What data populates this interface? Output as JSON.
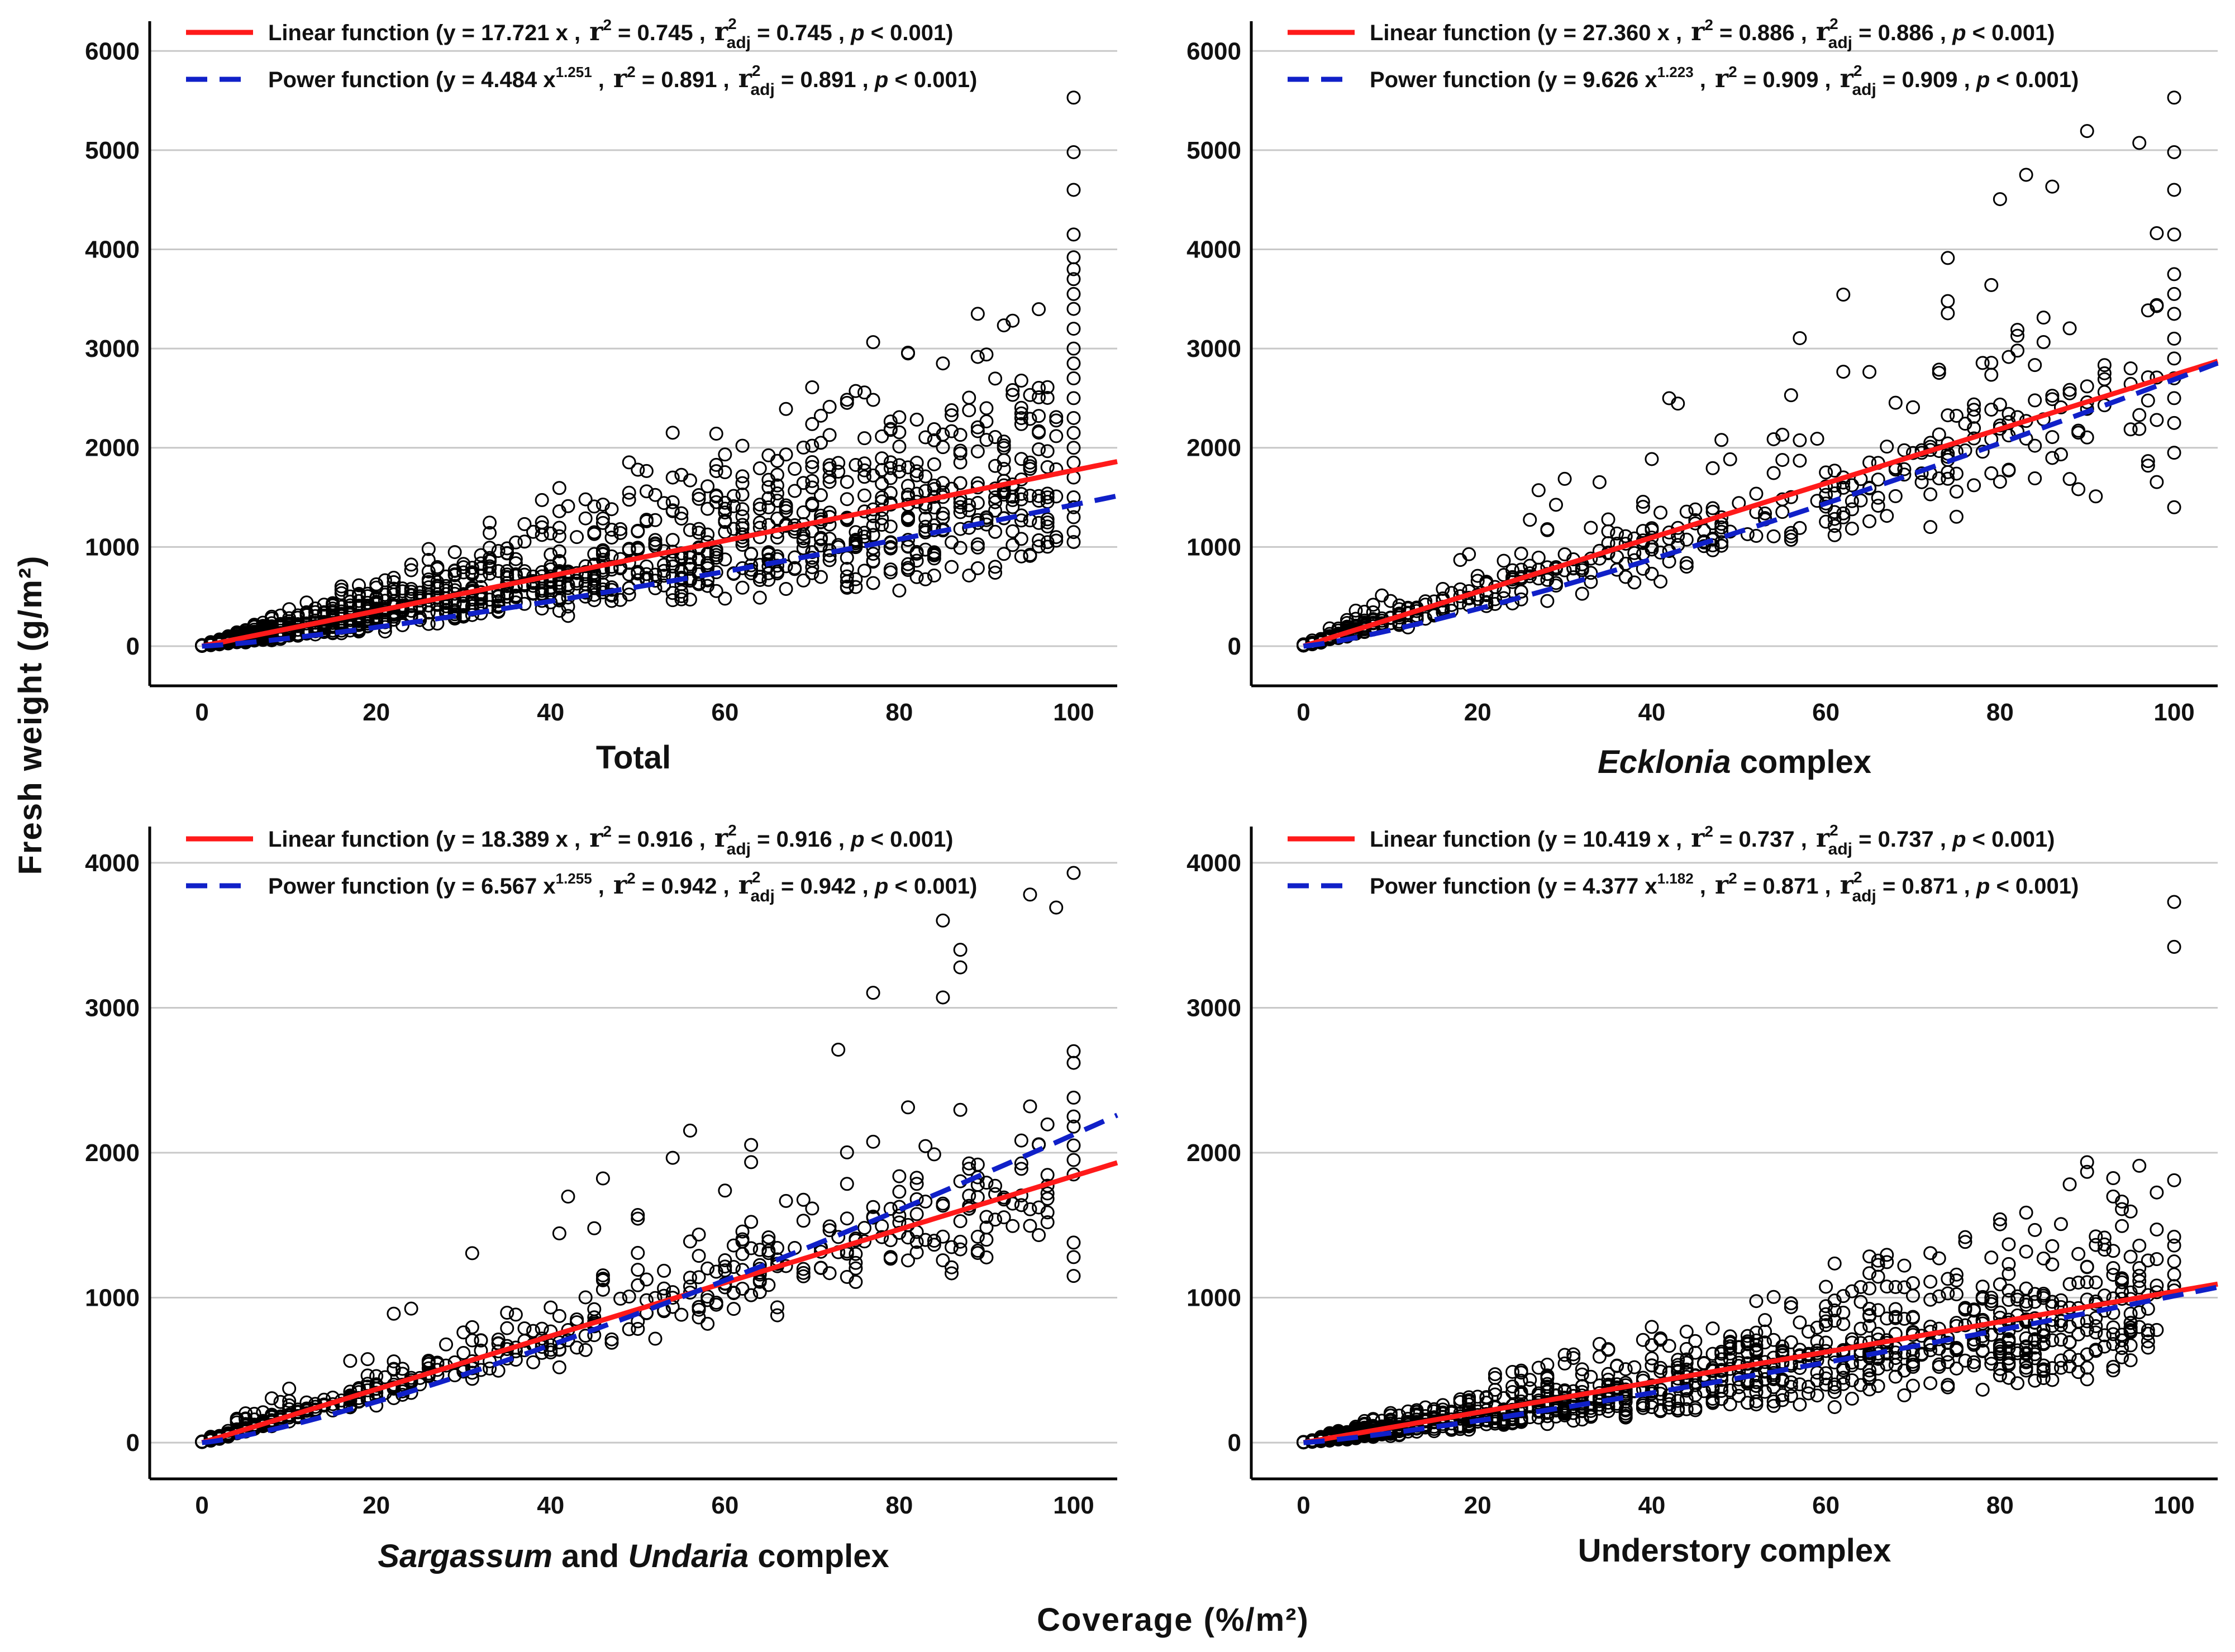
{
  "figure": {
    "y_axis_title": "Fresh weight (g/m²)",
    "x_axis_title": "Coverage  (%/m²)"
  },
  "colors": {
    "linear": "#ff1a1a",
    "power": "#1020c8",
    "grid": "#c8c8c8",
    "axis": "#000000",
    "marker": "#000000"
  },
  "chart_data": [
    {
      "type": "scatter",
      "title": "Total",
      "title_parts": [
        {
          "text": "Total",
          "italic": false
        }
      ],
      "xlim": [
        -6,
        105
      ],
      "ylim": [
        -400,
        6300
      ],
      "xticks": [
        0,
        20,
        40,
        60,
        80,
        100
      ],
      "yticks": [
        0,
        1000,
        2000,
        3000,
        4000,
        5000,
        6000
      ],
      "grid": true,
      "fits": [
        {
          "name": "Linear function",
          "model": "linear",
          "a": 17.721,
          "b": 1,
          "x_end": 105,
          "legend": {
            "lead": "Linear function (y = 17.721 x ,",
            "exp": "",
            "r2_label": "r",
            "r2_value": "= 0.745 ,",
            "radj_label": "r",
            "radj_sub": "adj",
            "radj_value": "= 0.745 ,",
            "p_label": "p",
            "p_value": "< 0.001)"
          }
        },
        {
          "name": "Power function",
          "model": "power",
          "a": 4.484,
          "b": 1.251,
          "x_end": 106,
          "legend": {
            "lead": "Power function (y = 4.484 x",
            "exp": "1.251",
            "r2_label": "r",
            "r2_value": "= 0.891 ,",
            "radj_label": "r",
            "radj_sub": "adj",
            "radj_value": "= 0.891 ,",
            "p_label": "p",
            "p_value": "< 0.001)"
          }
        }
      ],
      "points": {
        "seed": 11,
        "count": 1350,
        "slope": 16.5,
        "exponent": 1.0,
        "spread": 0.85,
        "full_cover_values": [
          5530,
          4980,
          4600,
          4150,
          3920,
          3800,
          3700,
          3550,
          3400,
          3200,
          3000,
          2850,
          2700,
          2500,
          2300,
          2150,
          2000,
          1850,
          1700,
          1500,
          1400,
          1300,
          1150,
          1050
        ]
      }
    },
    {
      "type": "scatter",
      "title": "Ecklonia complex",
      "title_parts": [
        {
          "text": "Ecklonia",
          "italic": true
        },
        {
          "text": " complex",
          "italic": false
        }
      ],
      "xlim": [
        -6,
        105
      ],
      "ylim": [
        -400,
        6300
      ],
      "xticks": [
        0,
        20,
        40,
        60,
        80,
        100
      ],
      "yticks": [
        0,
        1000,
        2000,
        3000,
        4000,
        5000,
        6000
      ],
      "grid": true,
      "fits": [
        {
          "name": "Linear function",
          "model": "linear",
          "a": 27.36,
          "b": 1,
          "x_end": 105,
          "legend": {
            "lead": "Linear function (y = 27.360 x ,",
            "exp": "",
            "r2_label": "r",
            "r2_value": "= 0.886 ,",
            "radj_label": "r",
            "radj_sub": "adj",
            "radj_value": "= 0.886 ,",
            "p_label": "p",
            "p_value": "< 0.001)"
          }
        },
        {
          "name": "Power function",
          "model": "power",
          "a": 9.626,
          "b": 1.223,
          "x_end": 105,
          "legend": {
            "lead": "Power function (y = 9.626 x",
            "exp": "1.223",
            "r2_label": "r",
            "r2_value": "= 0.909 ,",
            "radj_label": "r",
            "radj_sub": "adj",
            "radj_value": "= 0.909 ,",
            "p_label": "p",
            "p_value": "< 0.001)"
          }
        }
      ],
      "points": {
        "seed": 23,
        "count": 520,
        "slope": 26.0,
        "exponent": 1.0,
        "spread": 0.5,
        "full_cover_values": [
          5530,
          4980,
          4600,
          4150,
          3750,
          3550,
          3350,
          3100,
          2900,
          2700,
          2500,
          2250,
          1950,
          1400
        ]
      }
    },
    {
      "type": "scatter",
      "title": "Sargassum and Undaria complex",
      "title_parts": [
        {
          "text": "Sargassum",
          "italic": true
        },
        {
          "text": " and ",
          "italic": false
        },
        {
          "text": "Undaria",
          "italic": true
        },
        {
          "text": " complex",
          "italic": false
        }
      ],
      "xlim": [
        -6,
        105
      ],
      "ylim": [
        -250,
        4250
      ],
      "xticks": [
        0,
        20,
        40,
        60,
        80,
        100
      ],
      "yticks": [
        0,
        1000,
        2000,
        3000,
        4000
      ],
      "grid": true,
      "fits": [
        {
          "name": "Linear function",
          "model": "linear",
          "a": 18.389,
          "b": 1,
          "x_end": 105,
          "legend": {
            "lead": "Linear function (y = 18.389 x ,",
            "exp": "",
            "r2_label": "r",
            "r2_value": "= 0.916 ,",
            "radj_label": "r",
            "radj_sub": "adj",
            "radj_value": "= 0.916 ,",
            "p_label": "p",
            "p_value": "< 0.001)"
          }
        },
        {
          "name": "Power function",
          "model": "power",
          "a": 6.567,
          "b": 1.255,
          "x_end": 105,
          "legend": {
            "lead": "Power function (y = 6.567 x",
            "exp": "1.255",
            "r2_label": "r",
            "r2_value": "= 0.942 ,",
            "radj_label": "r",
            "radj_sub": "adj",
            "radj_value": "= 0.942 ,",
            "p_label": "p",
            "p_value": "< 0.001)"
          }
        }
      ],
      "points": {
        "seed": 37,
        "count": 560,
        "slope": 18.5,
        "exponent": 1.0,
        "spread": 0.38,
        "full_cover_values": [
          3930,
          2700,
          2620,
          2380,
          2250,
          2180,
          2050,
          1950,
          1850,
          1380,
          1280,
          1150
        ]
      }
    },
    {
      "type": "scatter",
      "title": "Understory complex",
      "title_parts": [
        {
          "text": "Understory complex",
          "italic": false
        }
      ],
      "xlim": [
        -6,
        105
      ],
      "ylim": [
        -250,
        4250
      ],
      "xticks": [
        0,
        20,
        40,
        60,
        80,
        100
      ],
      "yticks": [
        0,
        1000,
        2000,
        3000,
        4000
      ],
      "grid": true,
      "fits": [
        {
          "name": "Linear function",
          "model": "linear",
          "a": 10.419,
          "b": 1,
          "x_end": 105,
          "legend": {
            "lead": "Linear function (y = 10.419 x ,",
            "exp": "",
            "r2_label": "r",
            "r2_value": "= 0.737 ,",
            "radj_label": "r",
            "radj_sub": "adj",
            "radj_value": "= 0.737 ,",
            "p_label": "p",
            "p_value": "< 0.001)"
          }
        },
        {
          "name": "Power function",
          "model": "power",
          "a": 4.377,
          "b": 1.182,
          "x_end": 105,
          "legend": {
            "lead": "Power function (y = 4.377 x",
            "exp": "1.182",
            "r2_label": "r",
            "r2_value": "= 0.871 ,",
            "radj_label": "r",
            "radj_sub": "adj",
            "radj_value": "= 0.871 ,",
            "p_label": "p",
            "p_value": "< 0.001)"
          }
        }
      ],
      "points": {
        "seed": 53,
        "count": 1250,
        "slope": 9.5,
        "exponent": 1.0,
        "spread": 0.8,
        "full_cover_values": [
          3730,
          3420,
          1810,
          1420,
          1360,
          1250,
          1160,
          1080,
          1050
        ]
      }
    }
  ]
}
